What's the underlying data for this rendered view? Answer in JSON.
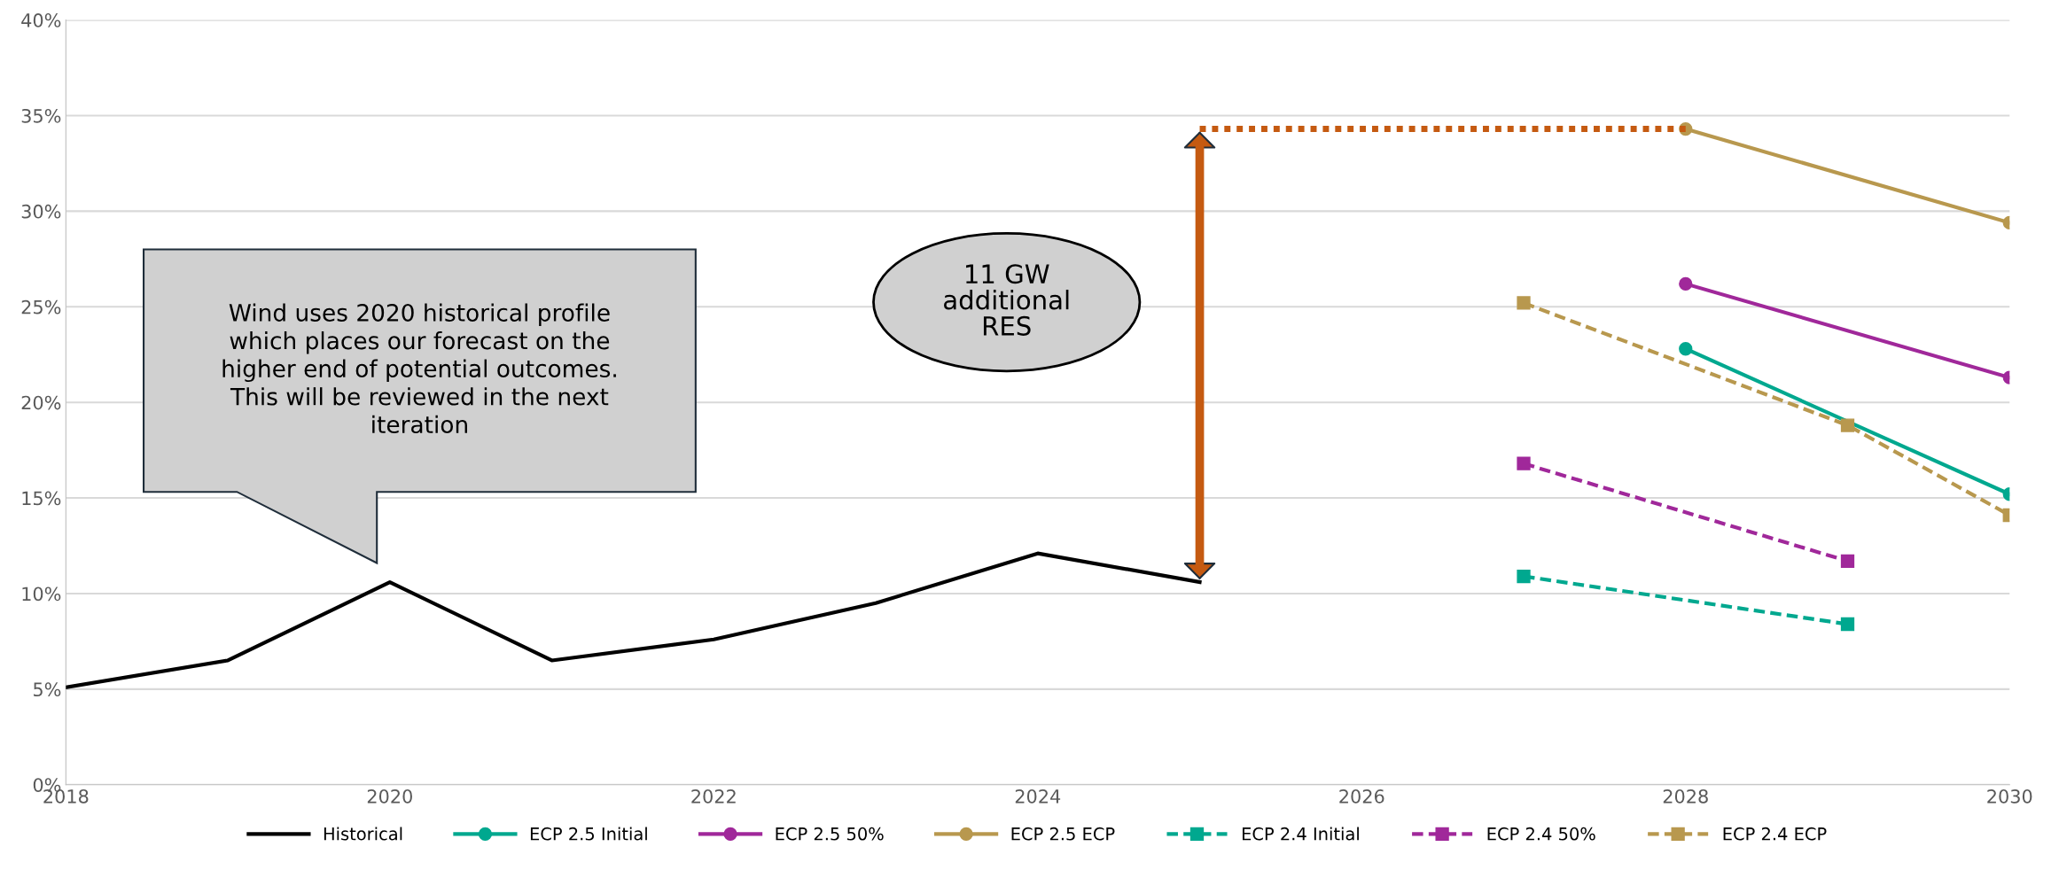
{
  "chart_data": {
    "type": "line",
    "xlim": [
      2018,
      2030
    ],
    "xticks": [
      2018,
      2020,
      2022,
      2024,
      2026,
      2028,
      2030
    ],
    "ylim": [
      0,
      40
    ],
    "yticks": [
      {
        "value": 0,
        "label": "0%"
      },
      {
        "value": 5,
        "label": "5%"
      },
      {
        "value": 10,
        "label": "10%"
      },
      {
        "value": 15,
        "label": "15%"
      },
      {
        "value": 20,
        "label": "20%"
      },
      {
        "value": 25,
        "label": "25%"
      },
      {
        "value": 30,
        "label": "30%"
      },
      {
        "value": 35,
        "label": "35%"
      },
      {
        "value": 40,
        "label": "40%"
      }
    ],
    "grid": "y",
    "legend": "bottom",
    "series": [
      {
        "name": "Historical",
        "color": "#000000",
        "x": [
          2018,
          2019,
          2020,
          2021,
          2022,
          2023,
          2024,
          2025
        ],
        "values": [
          5.1,
          6.5,
          10.6,
          6.5,
          7.6,
          9.5,
          12.1,
          10.6
        ],
        "marker": "none",
        "line_style": "solid"
      },
      {
        "name": "ECP 2.5 Initial",
        "color": "#00a88f",
        "x": [
          2028,
          2030
        ],
        "values": [
          22.8,
          15.2
        ],
        "marker": "circle",
        "line_style": "solid"
      },
      {
        "name": "ECP 2.5 50%",
        "color": "#a0289a",
        "x": [
          2028,
          2030
        ],
        "values": [
          26.2,
          21.3
        ],
        "marker": "circle",
        "line_style": "solid"
      },
      {
        "name": "ECP 2.5 ECP",
        "color": "#b8984e",
        "x": [
          2028,
          2030
        ],
        "values": [
          34.3,
          29.4
        ],
        "marker": "circle",
        "line_style": "solid"
      },
      {
        "name": "ECP 2.4 Initial",
        "color": "#00a88f",
        "x": [
          2027,
          2029
        ],
        "values": [
          10.9,
          8.4
        ],
        "marker": "square",
        "line_style": "dashed"
      },
      {
        "name": "ECP 2.4 50%",
        "color": "#a0289a",
        "x": [
          2027,
          2029
        ],
        "values": [
          16.8,
          11.7
        ],
        "marker": "square",
        "line_style": "dashed"
      },
      {
        "name": "ECP 2.4 ECP",
        "color": "#b8984e",
        "x": [
          2027,
          2029,
          2030
        ],
        "values": [
          25.2,
          18.8,
          14.1
        ],
        "marker": "square",
        "line_style": "dashed"
      },
      {
        "color": "#c55a11",
        "x": [
          2025,
          2028
        ],
        "values": [
          34.3,
          34.3
        ],
        "marker": "none",
        "line_style": "dotted"
      }
    ],
    "annotations": [
      "Wind uses 2020 historical profile\nwhich places our forecast on the\nhigher end of potential outcomes.\nThis will be reviewed in the next\niteration",
      "11 GW\nadditional\nRES"
    ]
  }
}
